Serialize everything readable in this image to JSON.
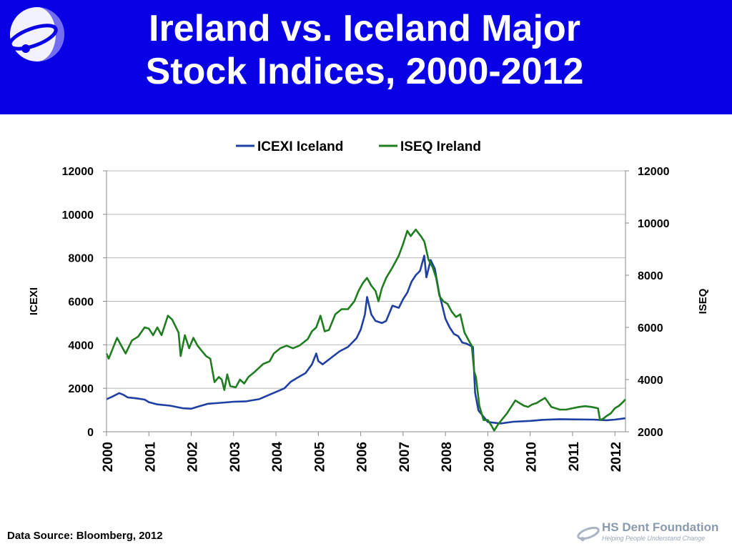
{
  "slide": {
    "title_line1": "Ireland vs. Iceland Major",
    "title_line2": "Stock Indices, 2000-2012",
    "source": "Data Source: Bloomberg, 2012",
    "brand_name": "HS Dent Foundation",
    "brand_tagline": "Helping People Understand Change"
  },
  "colors": {
    "header_bg": "#0a00e6",
    "iceland": "#1f3fa3",
    "ireland": "#1e7d1e",
    "grid": "#b8b8b8"
  },
  "chart_data": {
    "type": "line",
    "legend_position": "top-center",
    "grid": true,
    "ylabel": "ICEXI",
    "y2label": "ISEQ",
    "ylim": [
      0,
      12000
    ],
    "y2lim": [
      2000,
      12000
    ],
    "yticks": [
      "0",
      "2000",
      "4000",
      "6000",
      "8000",
      "10000",
      "12000"
    ],
    "y2ticks": [
      "2000",
      "4000",
      "6000",
      "8000",
      "10000",
      "12000"
    ],
    "xlim": [
      2000,
      2012.25
    ],
    "xticks": [
      "2000",
      "2001",
      "2002",
      "2003",
      "2004",
      "2005",
      "2006",
      "2007",
      "2008",
      "2009",
      "2010",
      "2011",
      "2012"
    ],
    "series": [
      {
        "name": "ICEXI Iceland",
        "axis": "left",
        "color": "#1f3fa3",
        "points": [
          [
            2000.0,
            1500
          ],
          [
            2000.1,
            1580
          ],
          [
            2000.2,
            1680
          ],
          [
            2000.3,
            1780
          ],
          [
            2000.4,
            1700
          ],
          [
            2000.5,
            1580
          ],
          [
            2000.7,
            1540
          ],
          [
            2000.9,
            1480
          ],
          [
            2001.0,
            1360
          ],
          [
            2001.2,
            1260
          ],
          [
            2001.5,
            1200
          ],
          [
            2001.8,
            1080
          ],
          [
            2002.0,
            1060
          ],
          [
            2002.2,
            1180
          ],
          [
            2002.4,
            1290
          ],
          [
            2002.7,
            1330
          ],
          [
            2003.0,
            1380
          ],
          [
            2003.3,
            1400
          ],
          [
            2003.6,
            1500
          ],
          [
            2003.9,
            1750
          ],
          [
            2004.0,
            1830
          ],
          [
            2004.2,
            2000
          ],
          [
            2004.35,
            2300
          ],
          [
            2004.5,
            2480
          ],
          [
            2004.7,
            2700
          ],
          [
            2004.85,
            3100
          ],
          [
            2004.95,
            3600
          ],
          [
            2005.0,
            3250
          ],
          [
            2005.1,
            3100
          ],
          [
            2005.3,
            3400
          ],
          [
            2005.5,
            3700
          ],
          [
            2005.7,
            3900
          ],
          [
            2005.9,
            4300
          ],
          [
            2006.0,
            4700
          ],
          [
            2006.1,
            5400
          ],
          [
            2006.15,
            6200
          ],
          [
            2006.25,
            5400
          ],
          [
            2006.35,
            5100
          ],
          [
            2006.5,
            5000
          ],
          [
            2006.6,
            5100
          ],
          [
            2006.75,
            5800
          ],
          [
            2006.9,
            5700
          ],
          [
            2007.0,
            6100
          ],
          [
            2007.1,
            6400
          ],
          [
            2007.2,
            6900
          ],
          [
            2007.3,
            7200
          ],
          [
            2007.4,
            7400
          ],
          [
            2007.5,
            8100
          ],
          [
            2007.55,
            7100
          ],
          [
            2007.65,
            7900
          ],
          [
            2007.75,
            7500
          ],
          [
            2007.85,
            6400
          ],
          [
            2008.0,
            5200
          ],
          [
            2008.1,
            4800
          ],
          [
            2008.2,
            4500
          ],
          [
            2008.3,
            4400
          ],
          [
            2008.4,
            4100
          ],
          [
            2008.5,
            4050
          ],
          [
            2008.6,
            3950
          ],
          [
            2008.65,
            3900
          ],
          [
            2008.7,
            1800
          ],
          [
            2008.78,
            980
          ],
          [
            2009.0,
            450
          ],
          [
            2009.3,
            380
          ],
          [
            2009.6,
            460
          ],
          [
            2010.0,
            500
          ],
          [
            2010.3,
            550
          ],
          [
            2010.7,
            580
          ],
          [
            2011.0,
            570
          ],
          [
            2011.5,
            560
          ],
          [
            2011.8,
            530
          ],
          [
            2012.0,
            560
          ],
          [
            2012.25,
            620
          ]
        ]
      },
      {
        "name": "ISEQ Ireland",
        "axis": "right",
        "color": "#1e7d1e",
        "points": [
          [
            2000.0,
            5000
          ],
          [
            2000.05,
            4800
          ],
          [
            2000.15,
            5200
          ],
          [
            2000.25,
            5600
          ],
          [
            2000.35,
            5300
          ],
          [
            2000.45,
            5000
          ],
          [
            2000.6,
            5500
          ],
          [
            2000.75,
            5650
          ],
          [
            2000.9,
            6000
          ],
          [
            2001.0,
            5950
          ],
          [
            2001.1,
            5700
          ],
          [
            2001.2,
            6000
          ],
          [
            2001.3,
            5700
          ],
          [
            2001.45,
            6450
          ],
          [
            2001.55,
            6300
          ],
          [
            2001.7,
            5800
          ],
          [
            2001.75,
            4900
          ],
          [
            2001.85,
            5700
          ],
          [
            2001.95,
            5200
          ],
          [
            2002.05,
            5600
          ],
          [
            2002.15,
            5300
          ],
          [
            2002.25,
            5100
          ],
          [
            2002.35,
            4900
          ],
          [
            2002.45,
            4800
          ],
          [
            2002.55,
            3900
          ],
          [
            2002.65,
            4100
          ],
          [
            2002.72,
            4000
          ],
          [
            2002.78,
            3600
          ],
          [
            2002.85,
            4200
          ],
          [
            2002.92,
            3750
          ],
          [
            2003.05,
            3700
          ],
          [
            2003.15,
            4000
          ],
          [
            2003.25,
            3850
          ],
          [
            2003.35,
            4100
          ],
          [
            2003.5,
            4300
          ],
          [
            2003.7,
            4600
          ],
          [
            2003.85,
            4700
          ],
          [
            2003.95,
            5000
          ],
          [
            2004.1,
            5200
          ],
          [
            2004.25,
            5300
          ],
          [
            2004.4,
            5200
          ],
          [
            2004.55,
            5300
          ],
          [
            2004.75,
            5550
          ],
          [
            2004.85,
            5850
          ],
          [
            2004.95,
            6000
          ],
          [
            2005.05,
            6450
          ],
          [
            2005.15,
            5850
          ],
          [
            2005.25,
            5900
          ],
          [
            2005.4,
            6500
          ],
          [
            2005.55,
            6700
          ],
          [
            2005.7,
            6700
          ],
          [
            2005.85,
            7000
          ],
          [
            2005.95,
            7400
          ],
          [
            2006.05,
            7700
          ],
          [
            2006.15,
            7900
          ],
          [
            2006.25,
            7600
          ],
          [
            2006.35,
            7400
          ],
          [
            2006.42,
            7000
          ],
          [
            2006.5,
            7500
          ],
          [
            2006.6,
            7900
          ],
          [
            2006.75,
            8300
          ],
          [
            2006.9,
            8750
          ],
          [
            2007.0,
            9200
          ],
          [
            2007.1,
            9700
          ],
          [
            2007.18,
            9500
          ],
          [
            2007.3,
            9750
          ],
          [
            2007.42,
            9500
          ],
          [
            2007.5,
            9300
          ],
          [
            2007.6,
            8600
          ],
          [
            2007.7,
            8300
          ],
          [
            2007.78,
            7900
          ],
          [
            2007.86,
            7200
          ],
          [
            2007.95,
            7000
          ],
          [
            2008.05,
            6900
          ],
          [
            2008.15,
            6600
          ],
          [
            2008.25,
            6400
          ],
          [
            2008.35,
            6500
          ],
          [
            2008.45,
            5800
          ],
          [
            2008.55,
            5500
          ],
          [
            2008.62,
            5300
          ],
          [
            2008.68,
            4300
          ],
          [
            2008.72,
            4100
          ],
          [
            2008.8,
            3000
          ],
          [
            2008.9,
            2450
          ],
          [
            2009.0,
            2450
          ],
          [
            2009.1,
            2200
          ],
          [
            2009.15,
            2050
          ],
          [
            2009.25,
            2300
          ],
          [
            2009.45,
            2700
          ],
          [
            2009.65,
            3200
          ],
          [
            2009.75,
            3100
          ],
          [
            2009.85,
            3000
          ],
          [
            2009.95,
            2950
          ],
          [
            2010.05,
            3050
          ],
          [
            2010.15,
            3100
          ],
          [
            2010.35,
            3300
          ],
          [
            2010.5,
            2950
          ],
          [
            2010.7,
            2850
          ],
          [
            2010.85,
            2850
          ],
          [
            2011.0,
            2900
          ],
          [
            2011.15,
            2950
          ],
          [
            2011.3,
            2980
          ],
          [
            2011.45,
            2950
          ],
          [
            2011.6,
            2900
          ],
          [
            2011.65,
            2450
          ],
          [
            2011.72,
            2500
          ],
          [
            2011.8,
            2600
          ],
          [
            2011.9,
            2700
          ],
          [
            2012.0,
            2900
          ],
          [
            2012.1,
            3000
          ],
          [
            2012.2,
            3150
          ],
          [
            2012.25,
            3250
          ]
        ]
      }
    ]
  }
}
